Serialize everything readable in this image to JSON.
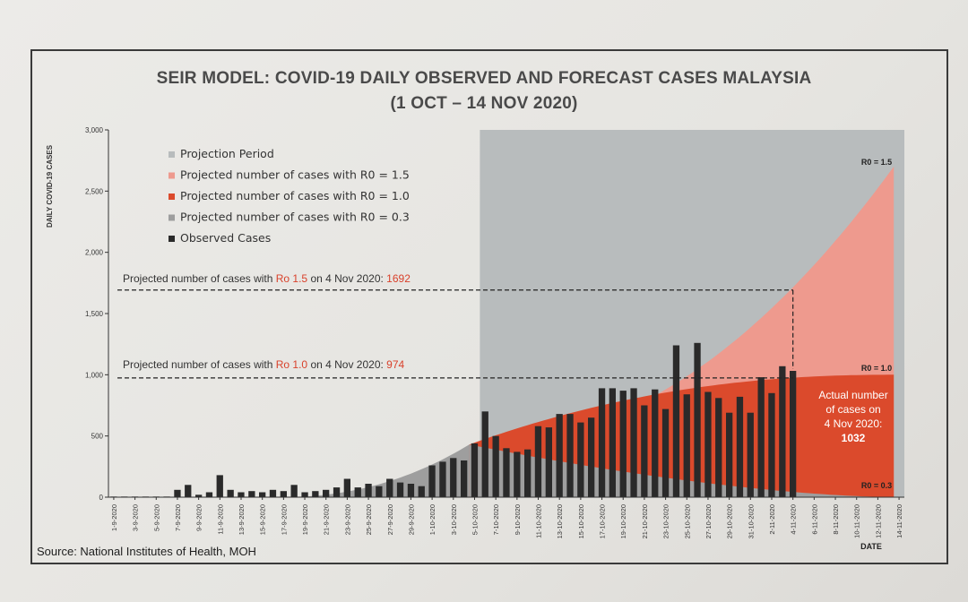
{
  "title_line1": "SEIR MODEL: COVID-19 DAILY OBSERVED AND FORECAST CASES MALAYSIA",
  "title_line2": "(1 OCT – 14 NOV 2020)",
  "source": "Source: National Institutes of Health, MOH",
  "colors": {
    "projection_period": "#b8bcbd",
    "r15": "#ee9a8e",
    "r10": "#db4a2c",
    "r03": "#9e9e9e",
    "observed": "#2a2a2a"
  },
  "chart_data": {
    "type": "bar",
    "xlabel": "DATE",
    "ylabel": "DAILY COVID-19 CASES",
    "ylim": [
      0,
      3000
    ],
    "yticks": [
      "0",
      "500",
      "1,000",
      "1,500",
      "2,000",
      "2,500",
      "3,000"
    ],
    "ytick_values": [
      0,
      500,
      1000,
      1500,
      2000,
      2500,
      3000
    ],
    "x_tick_labels": [
      "1-9-2020",
      "3-9-2020",
      "5-9-2020",
      "7-9-2020",
      "9-9-2020",
      "11-9-2020",
      "13-9-2020",
      "15-9-2020",
      "17-9-2020",
      "19-9-2020",
      "21-9-2020",
      "23-9-2020",
      "25-9-2020",
      "27-9-2020",
      "29-9-2020",
      "1-10-2020",
      "3-10-2020",
      "5-10-2020",
      "7-10-2020",
      "9-10-2020",
      "11-10-2020",
      "13-10-2020",
      "15-10-2020",
      "17-10-2020",
      "19-10-2020",
      "21-10-2020",
      "23-10-2020",
      "25-10-2020",
      "27-10-2020",
      "29-10-2020",
      "31-10-2020",
      "2-11-2020",
      "4-11-2020",
      "6-11-2020",
      "8-11-2020",
      "10-11-2020",
      "12-11-2020",
      "14-11-2020"
    ],
    "legend": [
      {
        "label": "Projection Period",
        "color_key": "projection_period"
      },
      {
        "label": "Projected number of cases with R0 = 1.5",
        "color_key": "r15"
      },
      {
        "label": "Projected number of cases with R0 = 1.0",
        "color_key": "r10"
      },
      {
        "label": "Projected number of cases with R0 = 0.3",
        "color_key": "r03"
      },
      {
        "label": "Observed Cases",
        "color_key": "observed"
      }
    ],
    "projection_period": {
      "start": "6-10-2020",
      "end": "14-11-2020"
    },
    "observed": {
      "start_date": "1-9-2020",
      "values": [
        5,
        5,
        5,
        5,
        5,
        5,
        60,
        100,
        20,
        40,
        180,
        60,
        40,
        50,
        40,
        60,
        50,
        100,
        40,
        50,
        60,
        80,
        150,
        80,
        110,
        90,
        150,
        120,
        110,
        90,
        260,
        290,
        320,
        300,
        440,
        700,
        500,
        400,
        370,
        390,
        580,
        570,
        680,
        680,
        610,
        650,
        890,
        890,
        870,
        890,
        750,
        880,
        720,
        1240,
        840,
        1260,
        860,
        810,
        690,
        820,
        690,
        980,
        850,
        1070,
        1032
      ]
    },
    "series": [
      {
        "name": "R0 = 1.5",
        "dates": [
          "5-10-2020",
          "14-11-2020"
        ],
        "values": [
          430,
          2700
        ]
      },
      {
        "name": "R0 = 1.0",
        "dates": [
          "5-10-2020",
          "14-11-2020"
        ],
        "values": [
          430,
          1000
        ]
      },
      {
        "name": "R0 = 0.3",
        "dates": [
          "5-10-2020",
          "14-11-2020"
        ],
        "values": [
          430,
          0
        ]
      }
    ],
    "series_labels": {
      "r15": "R0 = 1.5",
      "r10": "R0 = 1.0",
      "r03": "R0 = 0.3"
    },
    "annotations": {
      "r15_pre": "Projected number of cases with ",
      "r15_red": "Ro 1.5",
      "r15_mid": " on 4 Nov 2020: ",
      "r15_val": "1692",
      "r10_pre": "Projected number of cases with ",
      "r10_red": "Ro 1.0",
      "r10_mid": " on 4 Nov 2020: ",
      "r10_val": "974",
      "actual_lines": [
        "Actual number",
        "of cases on",
        "4 Nov 2020:",
        "1032"
      ]
    }
  }
}
